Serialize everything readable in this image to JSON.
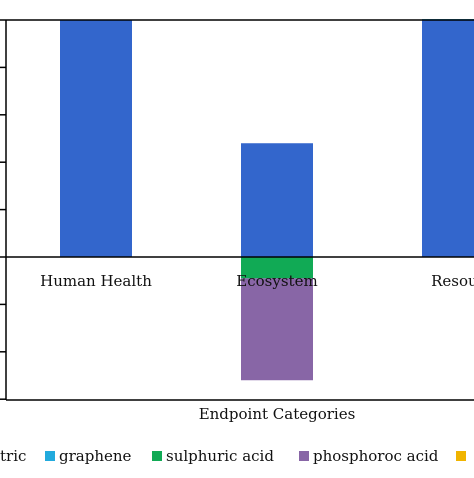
{
  "chart_data": {
    "type": "bar",
    "stacked": true,
    "categories": [
      "Human Health",
      "Ecosystem",
      "Resources"
    ],
    "category_labels_visible": [
      "Human Health",
      "Ecosystem",
      "Resour"
    ],
    "xlabel": "Endpoint Categories",
    "ylabel": "",
    "ylim": [
      -3,
      5
    ],
    "grid": false,
    "legend": {
      "placement": "bottom",
      "entries": [
        {
          "name": "tric",
          "color": "#3366cc"
        },
        {
          "name": "graphene",
          "color": "#22aadd"
        },
        {
          "name": "sulphuric acid",
          "color": "#11aa55"
        },
        {
          "name": "phosphoroc acid",
          "color": "#8866a6"
        },
        {
          "name": "",
          "color": "#f0b400"
        }
      ]
    },
    "series": [
      {
        "name": "tric",
        "color": "#3366cc",
        "values": [
          5.0,
          2.4,
          5.0
        ]
      },
      {
        "name": "graphene",
        "color": "#22aadd",
        "values": [
          0,
          0,
          0.02
        ]
      },
      {
        "name": "sulphuric acid",
        "color": "#11aa55",
        "values": [
          0,
          -0.45,
          0
        ]
      },
      {
        "name": "phosphoroc acid",
        "color": "#8866a6",
        "values": [
          0,
          -2.15,
          0
        ]
      }
    ]
  }
}
